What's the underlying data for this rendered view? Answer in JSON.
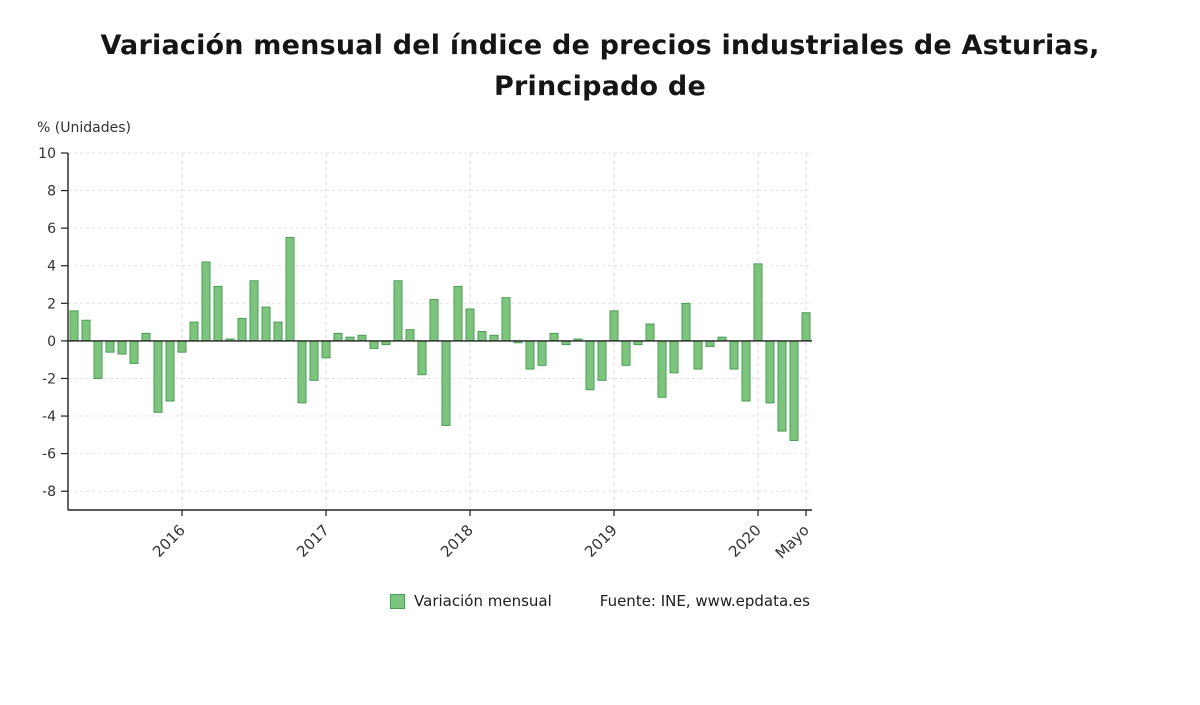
{
  "title": {
    "line1": "Variación mensual del índice de precios industriales de Asturias,",
    "line2": "Principado de"
  },
  "y_axis_unit_label": "% (Unidades)",
  "legend": {
    "series_label": "Variación mensual",
    "source_label": "Fuente: INE, www.epdata.es"
  },
  "colors": {
    "bar_fill": "#7dc57f",
    "bar_stroke": "#4a9e55",
    "axis": "#222222",
    "grid": "#e3e3e3",
    "text": "#333333"
  },
  "chart_data": {
    "type": "bar",
    "title": "Variación mensual del índice de precios industriales de Asturias, Principado de",
    "xlabel": "",
    "ylabel": "% (Unidades)",
    "ylim": [
      -9,
      10
    ],
    "yticks": [
      10,
      8,
      6,
      4,
      2,
      0,
      -2,
      -4,
      -6,
      -8
    ],
    "grid": true,
    "legend_position": "bottom",
    "series_name": "Variación mensual",
    "x": [
      "abr 2015",
      "may 2015",
      "jun 2015",
      "jul 2015",
      "ago 2015",
      "sep 2015",
      "oct 2015",
      "nov 2015",
      "dic 2015",
      "ene 2016",
      "feb 2016",
      "mar 2016",
      "abr 2016",
      "may 2016",
      "jun 2016",
      "jul 2016",
      "ago 2016",
      "sep 2016",
      "oct 2016",
      "nov 2016",
      "dic 2016",
      "ene 2017",
      "feb 2017",
      "mar 2017",
      "abr 2017",
      "may 2017",
      "jun 2017",
      "jul 2017",
      "ago 2017",
      "sep 2017",
      "oct 2017",
      "nov 2017",
      "dic 2017",
      "ene 2018",
      "feb 2018",
      "mar 2018",
      "abr 2018",
      "may 2018",
      "jun 2018",
      "jul 2018",
      "ago 2018",
      "sep 2018",
      "oct 2018",
      "nov 2018",
      "dic 2018",
      "ene 2019",
      "feb 2019",
      "mar 2019",
      "abr 2019",
      "may 2019",
      "jun 2019",
      "jul 2019",
      "ago 2019",
      "sep 2019",
      "oct 2019",
      "nov 2019",
      "dic 2019",
      "ene 2020",
      "feb 2020",
      "mar 2020",
      "abr 2020",
      "may 2020"
    ],
    "values": [
      1.6,
      1.1,
      -2.0,
      -0.6,
      -0.7,
      -1.2,
      0.4,
      -3.8,
      -3.2,
      -0.6,
      1.0,
      4.2,
      2.9,
      0.1,
      1.2,
      3.2,
      1.8,
      1.0,
      5.5,
      -3.3,
      -2.1,
      -0.9,
      0.4,
      0.2,
      0.3,
      -0.4,
      -0.2,
      3.2,
      0.6,
      -1.8,
      2.2,
      -4.5,
      2.9,
      1.7,
      0.5,
      0.3,
      2.3,
      -0.1,
      -1.5,
      -1.3,
      0.4,
      -0.2,
      0.1,
      -2.6,
      -2.1,
      1.6,
      -1.3,
      -0.2,
      0.9,
      -3.0,
      -1.7,
      2.0,
      -1.5,
      -0.3,
      0.2,
      -1.5,
      -3.2,
      4.1,
      -3.3,
      -4.8,
      -5.3,
      1.5
    ],
    "x_tick_labels": [
      "2016",
      "2017",
      "2018",
      "2019",
      "2020",
      "Mayo"
    ],
    "x_tick_positions": [
      9,
      21,
      33,
      45,
      57,
      61
    ]
  }
}
